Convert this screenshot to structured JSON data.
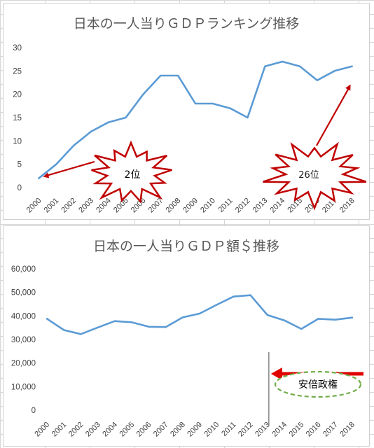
{
  "chart_data": [
    {
      "type": "line",
      "title": "日本の一人当りＧＤＰランキング推移",
      "xlabel": "",
      "ylabel": "",
      "x": [
        "2000",
        "2001",
        "2002",
        "2003",
        "2004",
        "2005",
        "2006",
        "2007",
        "2008",
        "2009",
        "2010",
        "2011",
        "2012",
        "2013",
        "2014",
        "2015",
        "2016",
        "2017",
        "2018"
      ],
      "series": [
        {
          "values": [
            2,
            5,
            9,
            12,
            14,
            15,
            20,
            24,
            24,
            18,
            18,
            17,
            15,
            26,
            27,
            26,
            23,
            25,
            26
          ]
        }
      ],
      "ylim": [
        0,
        30
      ],
      "yticks": [
        "0",
        "5",
        "10",
        "15",
        "20",
        "25",
        "30"
      ],
      "grid": false,
      "colors": {
        "line": "#5b9bd5",
        "arrow": "#c00000",
        "burst": "#c00000"
      },
      "annotations": [
        {
          "text": "2位",
          "points_to": "2000"
        },
        {
          "text": "26位",
          "points_to": "2018"
        }
      ]
    },
    {
      "type": "line",
      "title": "日本の一人当りＧＤＰ額＄推移",
      "xlabel": "",
      "ylabel": "",
      "x": [
        "2000",
        "2001",
        "2002",
        "2003",
        "2004",
        "2005",
        "2006",
        "2007",
        "2008",
        "2009",
        "2010",
        "2011",
        "2012",
        "2013",
        "2014",
        "2015",
        "2016",
        "2017",
        "2018"
      ],
      "series": [
        {
          "values": [
            38800,
            34000,
            32300,
            35100,
            37800,
            37300,
            35400,
            35300,
            39400,
            41000,
            44700,
            48200,
            48800,
            40400,
            38100,
            34500,
            38800,
            38400,
            39300
          ]
        }
      ],
      "ylim": [
        0,
        60000
      ],
      "yticks": [
        "0",
        "10,000",
        "20,000",
        "30,000",
        "40,000",
        "50,000",
        "60,000"
      ],
      "grid": false,
      "colors": {
        "line": "#5b9bd5",
        "arrow": "#e00000",
        "marker_line": "#7f7f7f",
        "ellipse": "#70ad47"
      },
      "annotations": [
        {
          "text": "安倍政権",
          "from": "2013"
        }
      ]
    }
  ]
}
